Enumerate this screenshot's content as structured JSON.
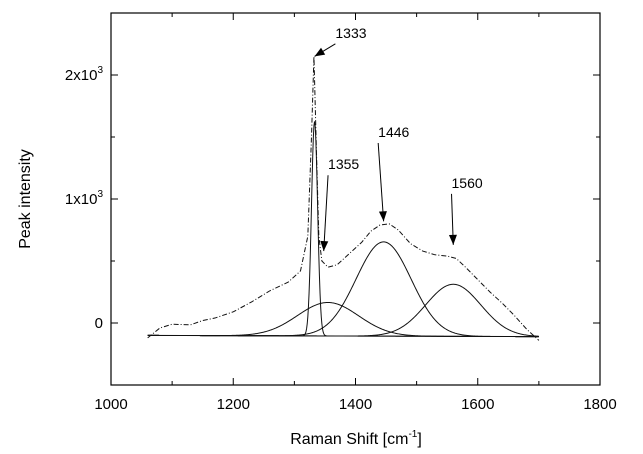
{
  "chart_data": {
    "type": "line",
    "xlabel_main": "Raman Shift [cm",
    "xlabel_sup": "-1",
    "xlabel_end": "]",
    "ylabel": "Peak intensity",
    "xlim": [
      1000,
      1800
    ],
    "ylim": [
      -500,
      2500
    ],
    "x_ticks": [
      {
        "value": 1000,
        "label": "1000"
      },
      {
        "value": 1200,
        "label": "1200"
      },
      {
        "value": 1400,
        "label": "1400"
      },
      {
        "value": 1600,
        "label": "1600"
      },
      {
        "value": 1800,
        "label": "1800"
      }
    ],
    "y_ticks": [
      {
        "value": 0,
        "base": "0",
        "exp": ""
      },
      {
        "value": 1000,
        "base": "1x10",
        "exp": "3"
      },
      {
        "value": 2000,
        "base": "2x10",
        "exp": "3"
      }
    ],
    "baseline": [
      [
        1060,
        -100
      ],
      [
        1700,
        -110
      ]
    ],
    "measured_spectrum": {
      "style": "dash-dot",
      "points": [
        [
          1060,
          -120
        ],
        [
          1080,
          -40
        ],
        [
          1100,
          -10
        ],
        [
          1130,
          -15
        ],
        [
          1150,
          20
        ],
        [
          1170,
          40
        ],
        [
          1200,
          90
        ],
        [
          1230,
          170
        ],
        [
          1260,
          260
        ],
        [
          1290,
          330
        ],
        [
          1310,
          420
        ],
        [
          1322,
          700
        ],
        [
          1328,
          1500
        ],
        [
          1332,
          2150
        ],
        [
          1336,
          1400
        ],
        [
          1340,
          700
        ],
        [
          1345,
          500
        ],
        [
          1355,
          450
        ],
        [
          1370,
          470
        ],
        [
          1390,
          560
        ],
        [
          1410,
          650
        ],
        [
          1425,
          740
        ],
        [
          1440,
          790
        ],
        [
          1455,
          800
        ],
        [
          1470,
          750
        ],
        [
          1490,
          640
        ],
        [
          1510,
          580
        ],
        [
          1530,
          550
        ],
        [
          1550,
          540
        ],
        [
          1565,
          520
        ],
        [
          1580,
          450
        ],
        [
          1600,
          350
        ],
        [
          1620,
          250
        ],
        [
          1640,
          160
        ],
        [
          1660,
          60
        ],
        [
          1680,
          -50
        ],
        [
          1700,
          -140
        ]
      ]
    },
    "fitted_peaks": [
      {
        "center": 1333,
        "amplitude": 1730,
        "width": 5
      },
      {
        "center": 1355,
        "amplitude": 270,
        "width": 50
      },
      {
        "center": 1446,
        "amplitude": 760,
        "width": 45
      },
      {
        "center": 1560,
        "amplitude": 420,
        "width": 45
      }
    ],
    "annotations": [
      {
        "label": "1333",
        "x": 1333,
        "y": 2150,
        "text_x": 1390,
        "text_y": 2300
      },
      {
        "label": "1355",
        "x": 1348,
        "y": 580,
        "text_x": 1378,
        "text_y": 1240
      },
      {
        "label": "1446",
        "x": 1446,
        "y": 820,
        "text_x": 1460,
        "text_y": 1500
      },
      {
        "label": "1560",
        "x": 1560,
        "y": 630,
        "text_x": 1580,
        "text_y": 1090
      }
    ]
  }
}
